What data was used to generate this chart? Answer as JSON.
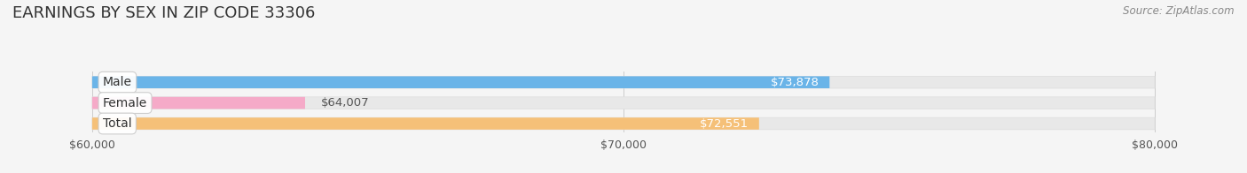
{
  "title": "EARNINGS BY SEX IN ZIP CODE 33306",
  "source": "Source: ZipAtlas.com",
  "categories": [
    "Male",
    "Female",
    "Total"
  ],
  "values": [
    73878,
    64007,
    72551
  ],
  "bar_colors": [
    "#6ab4e8",
    "#f5aac8",
    "#f5c078"
  ],
  "bar_labels": [
    "$73,878",
    "$64,007",
    "$72,551"
  ],
  "xmin": 60000,
  "xmax": 80000,
  "xticks": [
    60000,
    70000,
    80000
  ],
  "xtick_labels": [
    "$60,000",
    "$70,000",
    "$80,000"
  ],
  "bar_height": 0.58,
  "background_color": "#f5f5f5",
  "track_color": "#e8e8e8",
  "title_fontsize": 13,
  "cat_fontsize": 10,
  "value_fontsize": 9.5
}
